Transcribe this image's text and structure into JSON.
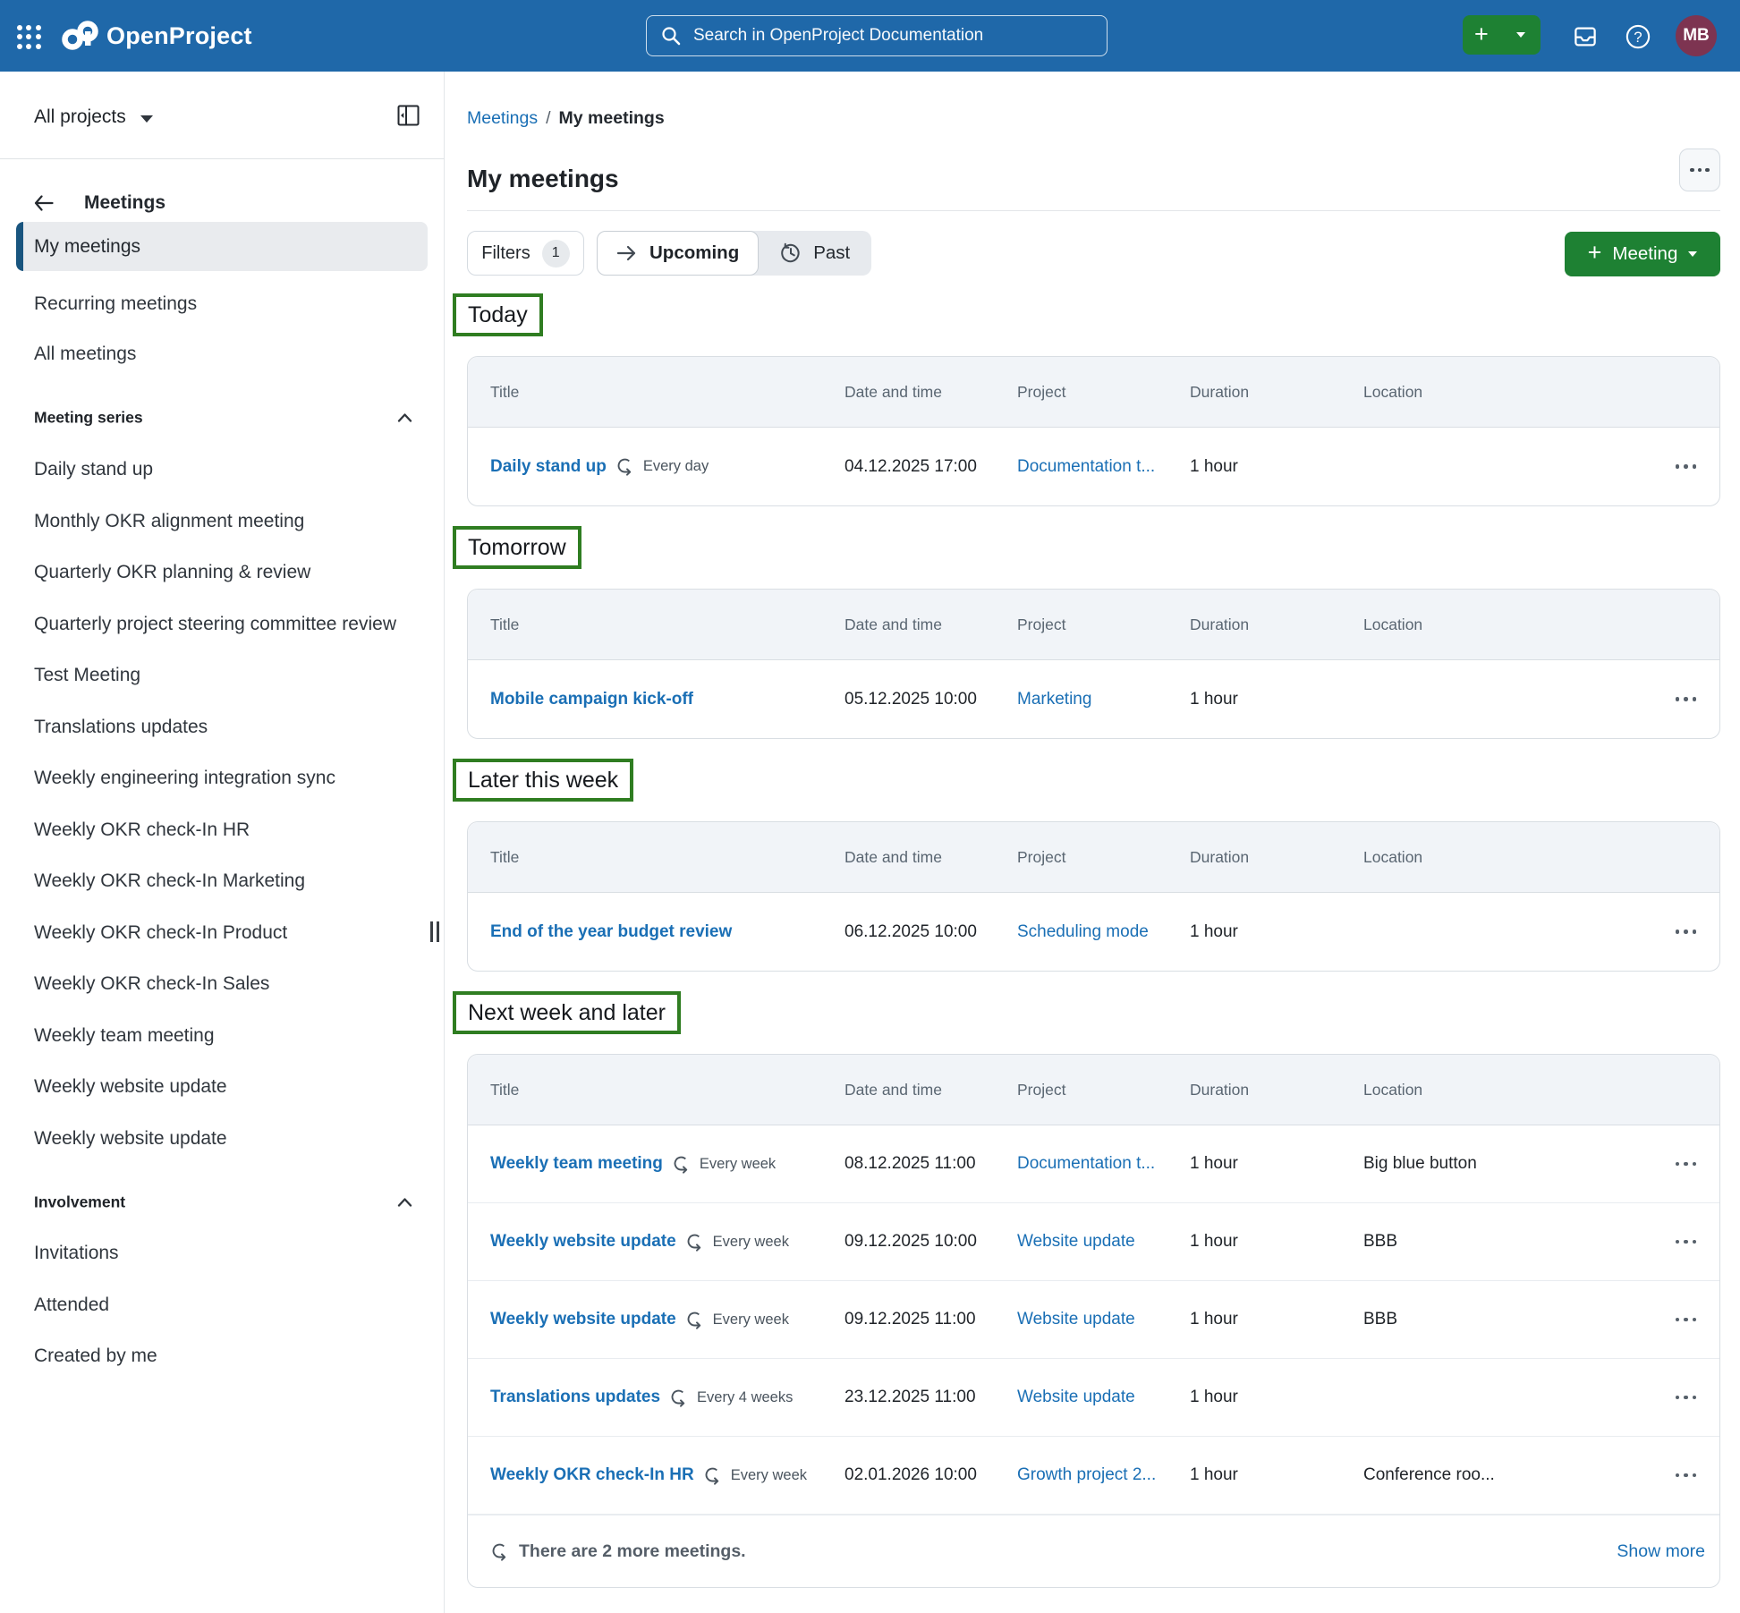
{
  "header": {
    "logo_text": "OpenProject",
    "search_placeholder": "Search in OpenProject Documentation",
    "avatar_initials": "MB"
  },
  "sidebar": {
    "projects_label": "All projects",
    "back_label": "Meetings",
    "top_items": [
      "My meetings",
      "Recurring meetings",
      "All meetings"
    ],
    "series_header": "Meeting series",
    "series_items": [
      "Daily stand up",
      "Monthly OKR alignment meeting",
      "Quarterly OKR planning & review",
      "Quarterly project steering committee review",
      "Test Meeting",
      "Translations updates",
      "Weekly engineering integration sync",
      "Weekly OKR check-In HR",
      "Weekly OKR check-In Marketing",
      "Weekly OKR check-In Product",
      "Weekly OKR check-In Sales",
      "Weekly team meeting",
      "Weekly website update",
      "Weekly website update"
    ],
    "involvement_header": "Involvement",
    "involvement_items": [
      "Invitations",
      "Attended",
      "Created by me"
    ]
  },
  "breadcrumb": {
    "parent": "Meetings",
    "separator": "/",
    "current": "My meetings"
  },
  "page": {
    "title": "My meetings"
  },
  "toolbar": {
    "filters_label": "Filters",
    "filters_count": "1",
    "upcoming_label": "Upcoming",
    "past_label": "Past",
    "new_meeting_label": "Meeting"
  },
  "table_columns": [
    "Title",
    "Date and time",
    "Project",
    "Duration",
    "Location"
  ],
  "sections": [
    {
      "heading": "Today",
      "rows": [
        {
          "title": "Daily stand up",
          "recurrence": "Every day",
          "datetime": "04.12.2025 17:00",
          "project": "Documentation t...",
          "duration": "1 hour",
          "location": ""
        }
      ]
    },
    {
      "heading": "Tomorrow",
      "rows": [
        {
          "title": "Mobile campaign kick-off",
          "recurrence": "",
          "datetime": "05.12.2025 10:00",
          "project": "Marketing",
          "duration": "1 hour",
          "location": ""
        }
      ]
    },
    {
      "heading": "Later this week",
      "rows": [
        {
          "title": "End of the year budget review",
          "recurrence": "",
          "datetime": "06.12.2025 10:00",
          "project": "Scheduling mode",
          "duration": "1 hour",
          "location": ""
        }
      ]
    },
    {
      "heading": "Next week and later",
      "rows": [
        {
          "title": "Weekly team meeting",
          "recurrence": "Every week",
          "datetime": "08.12.2025 11:00",
          "project": "Documentation t...",
          "duration": "1 hour",
          "location": "Big blue button"
        },
        {
          "title": "Weekly website update",
          "recurrence": "Every week",
          "datetime": "09.12.2025 10:00",
          "project": "Website update",
          "duration": "1 hour",
          "location": "BBB"
        },
        {
          "title": "Weekly website update",
          "recurrence": "Every week",
          "datetime": "09.12.2025 11:00",
          "project": "Website update",
          "duration": "1 hour",
          "location": "BBB"
        },
        {
          "title": "Translations updates",
          "recurrence": "Every 4 weeks",
          "datetime": "23.12.2025 11:00",
          "project": "Website update",
          "duration": "1 hour",
          "location": ""
        },
        {
          "title": "Weekly OKR check-In HR",
          "recurrence": "Every week",
          "datetime": "02.01.2026 10:00",
          "project": "Growth project 2...",
          "duration": "1 hour",
          "location": "Conference roo..."
        }
      ],
      "footer": {
        "more_text": "There are 2 more meetings.",
        "show_more_label": "Show more"
      }
    }
  ],
  "colors": {
    "header_bg": "#1f68a9",
    "accent_green": "#1e8133",
    "annotation_green": "#2f7d21",
    "link_blue": "#1a6fb5",
    "avatar_bg": "#7d3451"
  }
}
